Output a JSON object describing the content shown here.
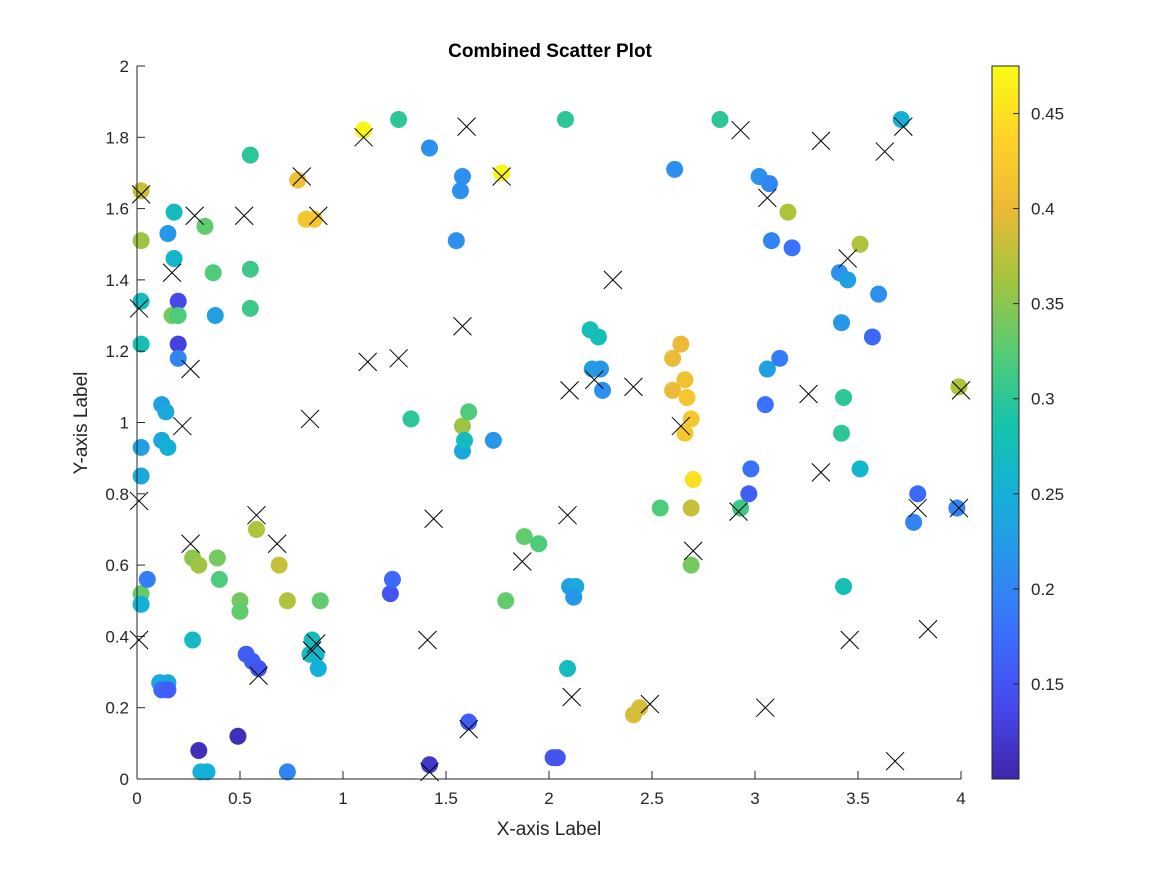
{
  "chart_data": {
    "type": "scatter",
    "title": "Combined Scatter Plot",
    "xlabel": "X-axis Label",
    "ylabel": "Y-axis Label",
    "xlim": [
      0,
      4
    ],
    "ylim": [
      0,
      2
    ],
    "x_ticks": [
      0,
      0.5,
      1,
      1.5,
      2,
      2.5,
      3,
      3.5,
      4
    ],
    "y_ticks": [
      0,
      0.2,
      0.4,
      0.6,
      0.8,
      1,
      1.2,
      1.4,
      1.6,
      1.8,
      2
    ],
    "x_tick_labels": [
      "0",
      "0.5",
      "1",
      "1.5",
      "2",
      "2.5",
      "3",
      "3.5",
      "4"
    ],
    "y_tick_labels": [
      "0",
      "0.2",
      "0.4",
      "0.6",
      "0.8",
      "1",
      "1.2",
      "1.4",
      "1.6",
      "1.8",
      "2"
    ],
    "grid": false,
    "colorbar": {
      "colormap": "parula",
      "range": [
        0.1,
        0.475
      ],
      "ticks": [
        0.15,
        0.2,
        0.25,
        0.3,
        0.35,
        0.4,
        0.45
      ],
      "tick_labels": [
        "0.15",
        "0.2",
        "0.25",
        "0.3",
        "0.35",
        "0.4",
        "0.45"
      ],
      "location": "right"
    },
    "series": [
      {
        "marker": "filled-circle",
        "points": [
          [
            0.02,
            1.65,
            0.38
          ],
          [
            0.02,
            1.51,
            0.36
          ],
          [
            0.02,
            1.34,
            0.27
          ],
          [
            0.02,
            1.22,
            0.28
          ],
          [
            0.02,
            0.93,
            0.23
          ],
          [
            0.02,
            0.85,
            0.24
          ],
          [
            0.02,
            0.52,
            0.33
          ],
          [
            0.02,
            0.49,
            0.25
          ],
          [
            0.05,
            0.56,
            0.19
          ],
          [
            0.12,
            1.05,
            0.23
          ],
          [
            0.14,
            1.03,
            0.24
          ],
          [
            0.15,
            1.53,
            0.22
          ],
          [
            0.12,
            0.95,
            0.24
          ],
          [
            0.15,
            0.93,
            0.25
          ],
          [
            0.17,
            1.3,
            0.34
          ],
          [
            0.18,
            1.59,
            0.27
          ],
          [
            0.18,
            1.46,
            0.26
          ],
          [
            0.2,
            1.34,
            0.14
          ],
          [
            0.2,
            1.3,
            0.32
          ],
          [
            0.2,
            1.22,
            0.13
          ],
          [
            0.2,
            1.18,
            0.2
          ],
          [
            0.11,
            0.27,
            0.24
          ],
          [
            0.15,
            0.27,
            0.24
          ],
          [
            0.12,
            0.25,
            0.17
          ],
          [
            0.15,
            0.25,
            0.16
          ],
          [
            0.27,
            0.39,
            0.27
          ],
          [
            0.27,
            0.62,
            0.35
          ],
          [
            0.3,
            0.6,
            0.36
          ],
          [
            0.33,
            1.55,
            0.33
          ],
          [
            0.37,
            1.42,
            0.32
          ],
          [
            0.38,
            1.3,
            0.23
          ],
          [
            0.39,
            0.62,
            0.34
          ],
          [
            0.4,
            0.56,
            0.32
          ],
          [
            0.3,
            0.08,
            0.11
          ],
          [
            0.31,
            0.02,
            0.25
          ],
          [
            0.34,
            0.02,
            0.25
          ],
          [
            0.49,
            0.12,
            0.11
          ],
          [
            0.5,
            0.5,
            0.34
          ],
          [
            0.5,
            0.47,
            0.33
          ],
          [
            0.53,
            0.35,
            0.16
          ],
          [
            0.56,
            0.33,
            0.16
          ],
          [
            0.59,
            0.31,
            0.15
          ],
          [
            0.55,
            1.75,
            0.3
          ],
          [
            0.55,
            1.43,
            0.31
          ],
          [
            0.55,
            1.32,
            0.31
          ],
          [
            0.58,
            0.7,
            0.37
          ],
          [
            0.69,
            0.6,
            0.38
          ],
          [
            0.73,
            0.5,
            0.37
          ],
          [
            0.73,
            0.02,
            0.2
          ],
          [
            0.78,
            1.68,
            0.41
          ],
          [
            0.82,
            1.57,
            0.42
          ],
          [
            0.86,
            1.57,
            0.42
          ],
          [
            0.85,
            0.39,
            0.27
          ],
          [
            0.84,
            0.35,
            0.27
          ],
          [
            0.87,
            0.35,
            0.26
          ],
          [
            0.88,
            0.31,
            0.25
          ],
          [
            0.89,
            0.5,
            0.33
          ],
          [
            1.1,
            1.82,
            0.47
          ],
          [
            1.27,
            1.85,
            0.3
          ],
          [
            1.33,
            1.01,
            0.3
          ],
          [
            1.23,
            0.52,
            0.15
          ],
          [
            1.24,
            0.56,
            0.17
          ],
          [
            1.42,
            1.77,
            0.21
          ],
          [
            1.42,
            0.04,
            0.12
          ],
          [
            1.55,
            1.51,
            0.21
          ],
          [
            1.57,
            1.65,
            0.21
          ],
          [
            1.58,
            1.69,
            0.21
          ],
          [
            1.58,
            0.99,
            0.36
          ],
          [
            1.58,
            0.92,
            0.24
          ],
          [
            1.59,
            0.95,
            0.27
          ],
          [
            1.61,
            1.03,
            0.32
          ],
          [
            1.61,
            0.16,
            0.16
          ],
          [
            1.73,
            0.95,
            0.22
          ],
          [
            1.77,
            1.7,
            0.47
          ],
          [
            1.79,
            0.5,
            0.33
          ],
          [
            1.88,
            0.68,
            0.33
          ],
          [
            1.95,
            0.66,
            0.32
          ],
          [
            2.02,
            0.06,
            0.15
          ],
          [
            2.04,
            0.06,
            0.15
          ],
          [
            2.08,
            1.85,
            0.3
          ],
          [
            2.1,
            0.54,
            0.23
          ],
          [
            2.13,
            0.54,
            0.24
          ],
          [
            2.12,
            0.51,
            0.22
          ],
          [
            2.09,
            0.31,
            0.27
          ],
          [
            2.2,
            1.26,
            0.28
          ],
          [
            2.21,
            1.15,
            0.23
          ],
          [
            2.25,
            1.15,
            0.22
          ],
          [
            2.24,
            1.24,
            0.28
          ],
          [
            2.26,
            1.09,
            0.21
          ],
          [
            2.41,
            0.18,
            0.39
          ],
          [
            2.44,
            0.2,
            0.39
          ],
          [
            2.54,
            0.76,
            0.32
          ],
          [
            2.6,
            1.18,
            0.4
          ],
          [
            2.6,
            1.09,
            0.4
          ],
          [
            2.64,
            1.22,
            0.4
          ],
          [
            2.66,
            1.12,
            0.41
          ],
          [
            2.67,
            1.07,
            0.42
          ],
          [
            2.69,
            1.01,
            0.42
          ],
          [
            2.66,
            0.97,
            0.42
          ],
          [
            2.7,
            0.84,
            0.45
          ],
          [
            2.69,
            0.76,
            0.38
          ],
          [
            2.69,
            0.6,
            0.34
          ],
          [
            2.61,
            1.71,
            0.21
          ],
          [
            2.83,
            1.85,
            0.3
          ],
          [
            2.93,
            0.76,
            0.31
          ],
          [
            2.98,
            0.87,
            0.18
          ],
          [
            2.97,
            0.8,
            0.16
          ],
          [
            3.02,
            1.69,
            0.21
          ],
          [
            3.07,
            1.67,
            0.2
          ],
          [
            3.08,
            1.51,
            0.2
          ],
          [
            3.06,
            1.15,
            0.23
          ],
          [
            3.05,
            1.05,
            0.18
          ],
          [
            3.12,
            1.18,
            0.19
          ],
          [
            3.16,
            1.59,
            0.37
          ],
          [
            3.18,
            1.49,
            0.18
          ],
          [
            3.41,
            1.42,
            0.21
          ],
          [
            3.42,
            1.28,
            0.22
          ],
          [
            3.42,
            0.97,
            0.3
          ],
          [
            3.43,
            1.07,
            0.3
          ],
          [
            3.43,
            0.54,
            0.28
          ],
          [
            3.45,
            1.4,
            0.23
          ],
          [
            3.51,
            1.5,
            0.37
          ],
          [
            3.51,
            0.87,
            0.26
          ],
          [
            3.57,
            1.24,
            0.17
          ],
          [
            3.6,
            1.36,
            0.21
          ],
          [
            3.71,
            1.85,
            0.25
          ],
          [
            3.77,
            0.72,
            0.2
          ],
          [
            3.79,
            0.8,
            0.17
          ],
          [
            3.98,
            0.76,
            0.2
          ],
          [
            3.99,
            1.1,
            0.37
          ]
        ]
      },
      {
        "marker": "x",
        "color": "#000000",
        "points": [
          [
            0.02,
            1.64
          ],
          [
            0.01,
            1.32
          ],
          [
            0.01,
            0.78
          ],
          [
            0.01,
            0.39
          ],
          [
            0.17,
            1.42
          ],
          [
            0.22,
            0.99
          ],
          [
            0.26,
            1.15
          ],
          [
            0.26,
            0.66
          ],
          [
            0.28,
            1.58
          ],
          [
            0.52,
            1.58
          ],
          [
            0.58,
            0.74
          ],
          [
            0.59,
            0.29
          ],
          [
            0.68,
            0.66
          ],
          [
            0.8,
            1.69
          ],
          [
            0.84,
            1.01
          ],
          [
            0.88,
            1.58
          ],
          [
            0.87,
            0.38
          ],
          [
            0.85,
            0.36
          ],
          [
            1.1,
            1.8
          ],
          [
            1.12,
            1.17
          ],
          [
            1.27,
            1.18
          ],
          [
            1.41,
            0.39
          ],
          [
            1.44,
            0.73
          ],
          [
            1.42,
            0.02
          ],
          [
            1.6,
            1.83
          ],
          [
            1.58,
            1.27
          ],
          [
            1.61,
            0.14
          ],
          [
            1.77,
            1.69
          ],
          [
            1.87,
            0.61
          ],
          [
            2.09,
            0.74
          ],
          [
            2.1,
            1.09
          ],
          [
            2.11,
            0.23
          ],
          [
            2.22,
            1.12
          ],
          [
            2.31,
            1.4
          ],
          [
            2.41,
            1.1
          ],
          [
            2.49,
            0.21
          ],
          [
            2.64,
            0.99
          ],
          [
            2.7,
            0.64
          ],
          [
            2.92,
            0.75
          ],
          [
            2.93,
            1.82
          ],
          [
            3.06,
            1.63
          ],
          [
            3.05,
            0.2
          ],
          [
            3.26,
            1.08
          ],
          [
            3.32,
            1.79
          ],
          [
            3.32,
            0.86
          ],
          [
            3.45,
            1.46
          ],
          [
            3.46,
            0.39
          ],
          [
            3.63,
            1.76
          ],
          [
            3.72,
            1.83
          ],
          [
            3.68,
            0.05
          ],
          [
            3.79,
            0.76
          ],
          [
            3.84,
            0.42
          ],
          [
            3.99,
            0.76
          ],
          [
            4.0,
            1.09
          ]
        ]
      }
    ]
  }
}
